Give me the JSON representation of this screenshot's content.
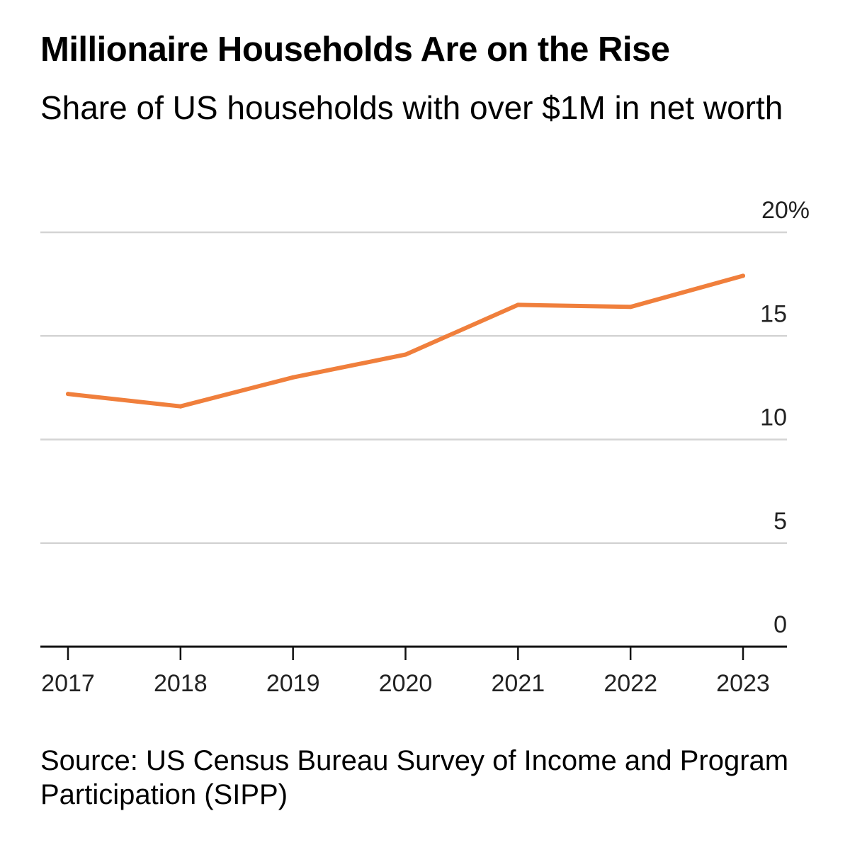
{
  "chart_data": {
    "type": "line",
    "title": "Millionaire Households Are on the Rise",
    "subtitle": "Share of US households with over $1M in net worth",
    "xlabel": "",
    "ylabel": "",
    "categories": [
      "2017",
      "2018",
      "2019",
      "2020",
      "2021",
      "2022",
      "2023"
    ],
    "series": [
      {
        "name": "Share of US households with over $1M in net worth",
        "values": [
          12.2,
          11.6,
          13.0,
          14.1,
          16.5,
          16.4,
          17.9
        ]
      }
    ],
    "ylim": [
      0,
      20
    ],
    "yticks": [
      0,
      5,
      10,
      15,
      20
    ],
    "ytick_labels": [
      "0",
      "5",
      "10",
      "15",
      "20%"
    ],
    "grid": true,
    "line_color": "#f07f3c",
    "source": "Source: US Census Bureau Survey of Income and Program Participation (SIPP)"
  }
}
